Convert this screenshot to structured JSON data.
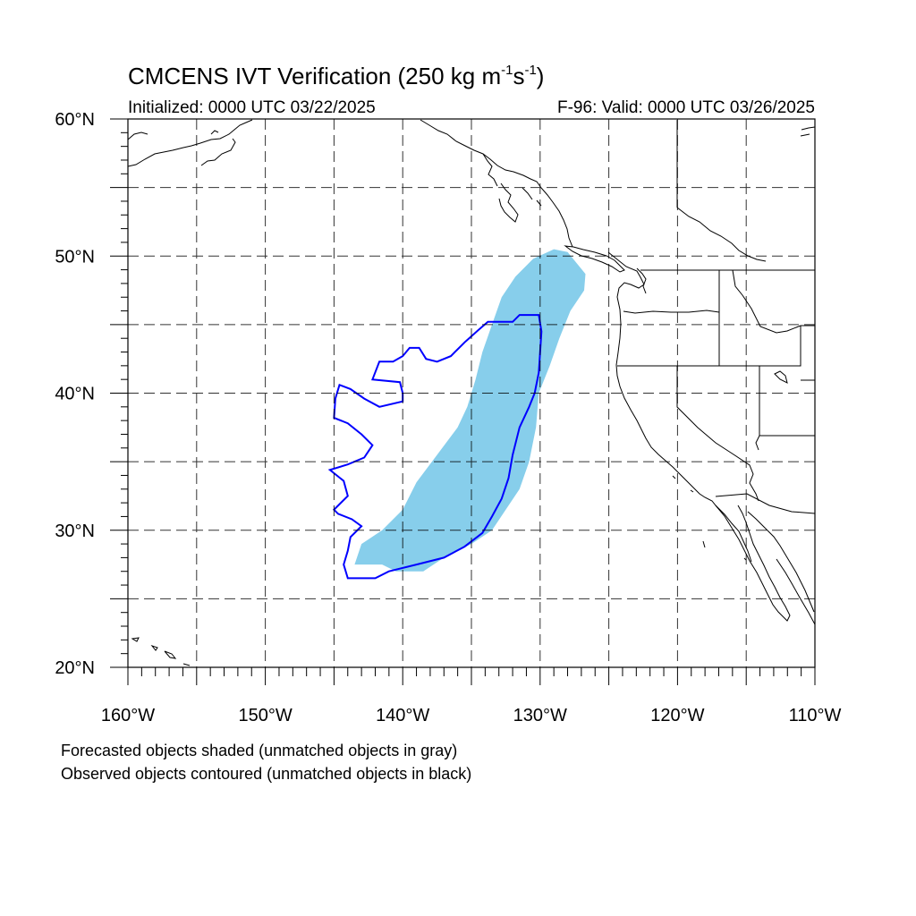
{
  "figure": {
    "title_prefix": "CMCENS IVT Verification (250 kg m",
    "title_exp1": "-1",
    "title_mid": "s",
    "title_exp2": "-1",
    "title_suffix": ")",
    "subtitle_left": "Initialized: 0000 UTC 03/22/2025",
    "subtitle_right": "F-96: Valid: 0000 UTC 03/26/2025",
    "note_1": "Forecasted objects shaded (unmatched objects in gray)",
    "note_2": "Observed objects contoured (unmatched objects in black)"
  },
  "map": {
    "lon_range": [
      -160,
      -110
    ],
    "lat_range": [
      20,
      60
    ],
    "lat_labels": [
      "60°N",
      "50°N",
      "40°N",
      "30°N",
      "20°N"
    ],
    "lon_labels": [
      "160°W",
      "150°W",
      "140°W",
      "130°W",
      "120°W",
      "110°W"
    ],
    "grid_step_deg": 5,
    "colors": {
      "forecast_fill": "#87ceeb",
      "observed_contour": "#0000ff",
      "coastline": "#000000",
      "grid": "#000000"
    },
    "forecast_object": [
      [
        -143.5,
        27.5
      ],
      [
        -141.5,
        27.5
      ],
      [
        -140.5,
        27.0
      ],
      [
        -138.5,
        27.0
      ],
      [
        -137.0,
        28.0
      ],
      [
        -135.0,
        29.0
      ],
      [
        -133.5,
        30.0
      ],
      [
        -132.5,
        31.5
      ],
      [
        -131.5,
        33.0
      ],
      [
        -130.8,
        35.0
      ],
      [
        -130.3,
        37.5
      ],
      [
        -130.1,
        40.0
      ],
      [
        -129.3,
        42.0
      ],
      [
        -128.6,
        44.0
      ],
      [
        -127.8,
        46.0
      ],
      [
        -126.8,
        47.5
      ],
      [
        -126.7,
        48.7
      ],
      [
        -128.0,
        50.3
      ],
      [
        -129.0,
        50.5
      ],
      [
        -130.5,
        49.8
      ],
      [
        -131.8,
        48.5
      ],
      [
        -132.8,
        47.0
      ],
      [
        -133.5,
        45.0
      ],
      [
        -134.2,
        43.0
      ],
      [
        -134.7,
        41.0
      ],
      [
        -135.3,
        39.0
      ],
      [
        -136.0,
        37.5
      ],
      [
        -137.5,
        35.5
      ],
      [
        -139.0,
        33.5
      ],
      [
        -140.0,
        31.5
      ],
      [
        -141.5,
        30.0
      ],
      [
        -143.0,
        29.0
      ]
    ],
    "observed_object": [
      [
        -144.0,
        26.5
      ],
      [
        -142.0,
        26.5
      ],
      [
        -141.0,
        27.0
      ],
      [
        -139.0,
        27.5
      ],
      [
        -137.0,
        28.0
      ],
      [
        -135.5,
        28.8
      ],
      [
        -134.2,
        29.8
      ],
      [
        -133.5,
        31.0
      ],
      [
        -132.8,
        32.3
      ],
      [
        -132.3,
        33.8
      ],
      [
        -132.0,
        35.5
      ],
      [
        -131.5,
        37.5
      ],
      [
        -130.8,
        39.0
      ],
      [
        -130.4,
        40.0
      ],
      [
        -130.1,
        41.5
      ],
      [
        -130.0,
        43.0
      ],
      [
        -129.9,
        44.5
      ],
      [
        -130.1,
        45.7
      ],
      [
        -131.5,
        45.7
      ],
      [
        -132.0,
        45.2
      ],
      [
        -133.8,
        45.2
      ],
      [
        -134.5,
        44.6
      ],
      [
        -135.5,
        43.7
      ],
      [
        -136.5,
        42.7
      ],
      [
        -137.5,
        42.3
      ],
      [
        -138.3,
        42.5
      ],
      [
        -138.8,
        43.3
      ],
      [
        -139.5,
        43.3
      ],
      [
        -140.0,
        42.7
      ],
      [
        -140.7,
        42.3
      ],
      [
        -141.7,
        42.3
      ],
      [
        -142.2,
        41.0
      ],
      [
        -140.2,
        40.8
      ],
      [
        -140.0,
        40.0
      ],
      [
        -140.0,
        39.4
      ],
      [
        -141.7,
        39.0
      ],
      [
        -142.8,
        39.6
      ],
      [
        -143.8,
        40.3
      ],
      [
        -144.6,
        40.6
      ],
      [
        -144.9,
        39.6
      ],
      [
        -145.0,
        38.2
      ],
      [
        -144.0,
        37.8
      ],
      [
        -143.0,
        37.0
      ],
      [
        -142.2,
        36.2
      ],
      [
        -142.8,
        35.3
      ],
      [
        -144.0,
        34.8
      ],
      [
        -145.3,
        34.4
      ],
      [
        -144.3,
        33.6
      ],
      [
        -144.0,
        32.5
      ],
      [
        -145.0,
        31.5
      ],
      [
        -144.7,
        31.2
      ],
      [
        -143.7,
        30.8
      ],
      [
        -143.0,
        30.3
      ],
      [
        -143.8,
        29.5
      ],
      [
        -144.0,
        28.5
      ],
      [
        -144.3,
        27.5
      ]
    ]
  }
}
